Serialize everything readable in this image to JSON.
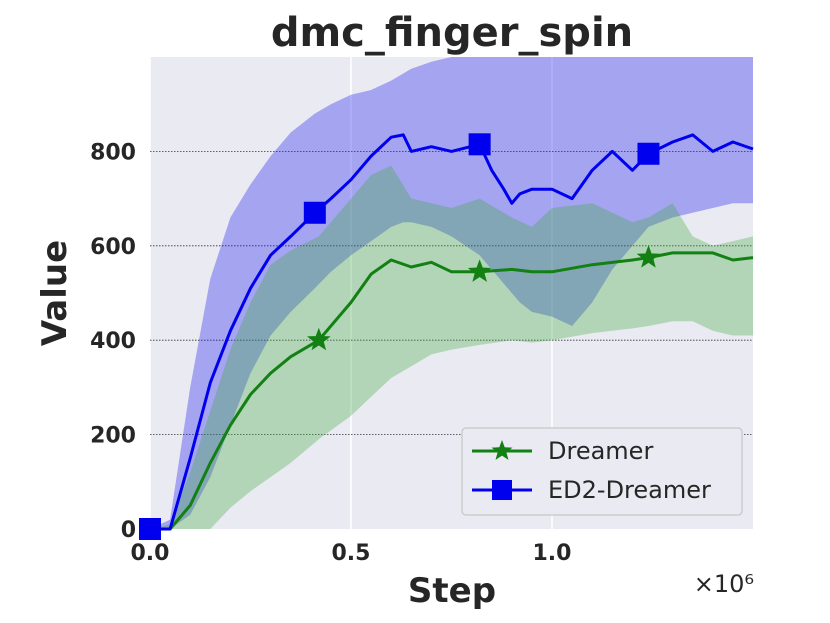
{
  "chart_data": {
    "type": "line",
    "title": "dmc_finger_spin",
    "xlabel": "Step",
    "ylabel": "Value",
    "x_offset_label": "×10⁶",
    "xlim": [
      0,
      1.5
    ],
    "ylim": [
      0,
      1000
    ],
    "x_ticks": [
      0.0,
      0.5,
      1.0
    ],
    "x_tick_labels": [
      "0.0",
      "0.5",
      "1.0"
    ],
    "y_ticks": [
      0,
      200,
      400,
      600,
      800
    ],
    "y_tick_labels": [
      "0",
      "200",
      "400",
      "600",
      "800"
    ],
    "grid": true,
    "legend_position": "lower-right",
    "colors": {
      "plot_bg": "#eaeaf2",
      "Dreamer": "#138013",
      "ED2-Dreamer": "#0000ee"
    },
    "series": [
      {
        "name": "Dreamer",
        "marker": "star",
        "color": "#138013",
        "x": [
          0.0,
          0.05,
          0.1,
          0.15,
          0.2,
          0.25,
          0.3,
          0.35,
          0.42,
          0.5,
          0.55,
          0.6,
          0.65,
          0.7,
          0.75,
          0.82,
          0.9,
          0.95,
          1.0,
          1.1,
          1.2,
          1.24,
          1.3,
          1.35,
          1.4,
          1.45,
          1.5
        ],
        "y": [
          0,
          0,
          50,
          140,
          220,
          285,
          330,
          365,
          400,
          480,
          540,
          570,
          555,
          565,
          545,
          545,
          550,
          545,
          545,
          560,
          570,
          575,
          585,
          585,
          585,
          570,
          575
        ],
        "lower": [
          0,
          0,
          0,
          0,
          45,
          80,
          110,
          140,
          190,
          240,
          280,
          320,
          345,
          370,
          380,
          390,
          400,
          395,
          400,
          415,
          425,
          430,
          440,
          440,
          420,
          410,
          410
        ],
        "upper": [
          0,
          10,
          120,
          250,
          380,
          480,
          560,
          590,
          620,
          700,
          750,
          770,
          700,
          690,
          680,
          700,
          660,
          640,
          680,
          690,
          650,
          660,
          690,
          620,
          600,
          610,
          620
        ],
        "marker_x": [
          0.42,
          0.82,
          1.24
        ]
      },
      {
        "name": "ED2-Dreamer",
        "marker": "square",
        "color": "#0000ee",
        "x": [
          0.0,
          0.05,
          0.1,
          0.15,
          0.2,
          0.25,
          0.3,
          0.35,
          0.41,
          0.45,
          0.5,
          0.55,
          0.6,
          0.63,
          0.65,
          0.7,
          0.75,
          0.82,
          0.85,
          0.88,
          0.9,
          0.92,
          0.95,
          1.0,
          1.05,
          1.1,
          1.15,
          1.2,
          1.24,
          1.3,
          1.35,
          1.4,
          1.45,
          1.5
        ],
        "y": [
          0,
          0,
          150,
          310,
          420,
          510,
          580,
          620,
          670,
          700,
          740,
          790,
          830,
          835,
          800,
          810,
          800,
          815,
          760,
          720,
          690,
          710,
          720,
          720,
          700,
          760,
          800,
          760,
          795,
          820,
          835,
          800,
          820,
          805
        ],
        "lower": [
          0,
          0,
          30,
          110,
          220,
          330,
          410,
          460,
          510,
          545,
          580,
          610,
          640,
          650,
          650,
          640,
          620,
          580,
          550,
          520,
          500,
          480,
          460,
          450,
          430,
          480,
          550,
          600,
          640,
          660,
          670,
          680,
          690,
          690
        ],
        "upper": [
          0,
          20,
          300,
          530,
          660,
          730,
          790,
          840,
          880,
          900,
          920,
          930,
          950,
          965,
          975,
          990,
          1000,
          1000,
          1000,
          1000,
          1000,
          1000,
          1000,
          1000,
          1000,
          1000,
          1000,
          1000,
          1000,
          1000,
          1000,
          1000,
          1000,
          1000
        ],
        "marker_x": [
          0.0,
          0.41,
          0.82,
          1.24
        ]
      }
    ]
  }
}
